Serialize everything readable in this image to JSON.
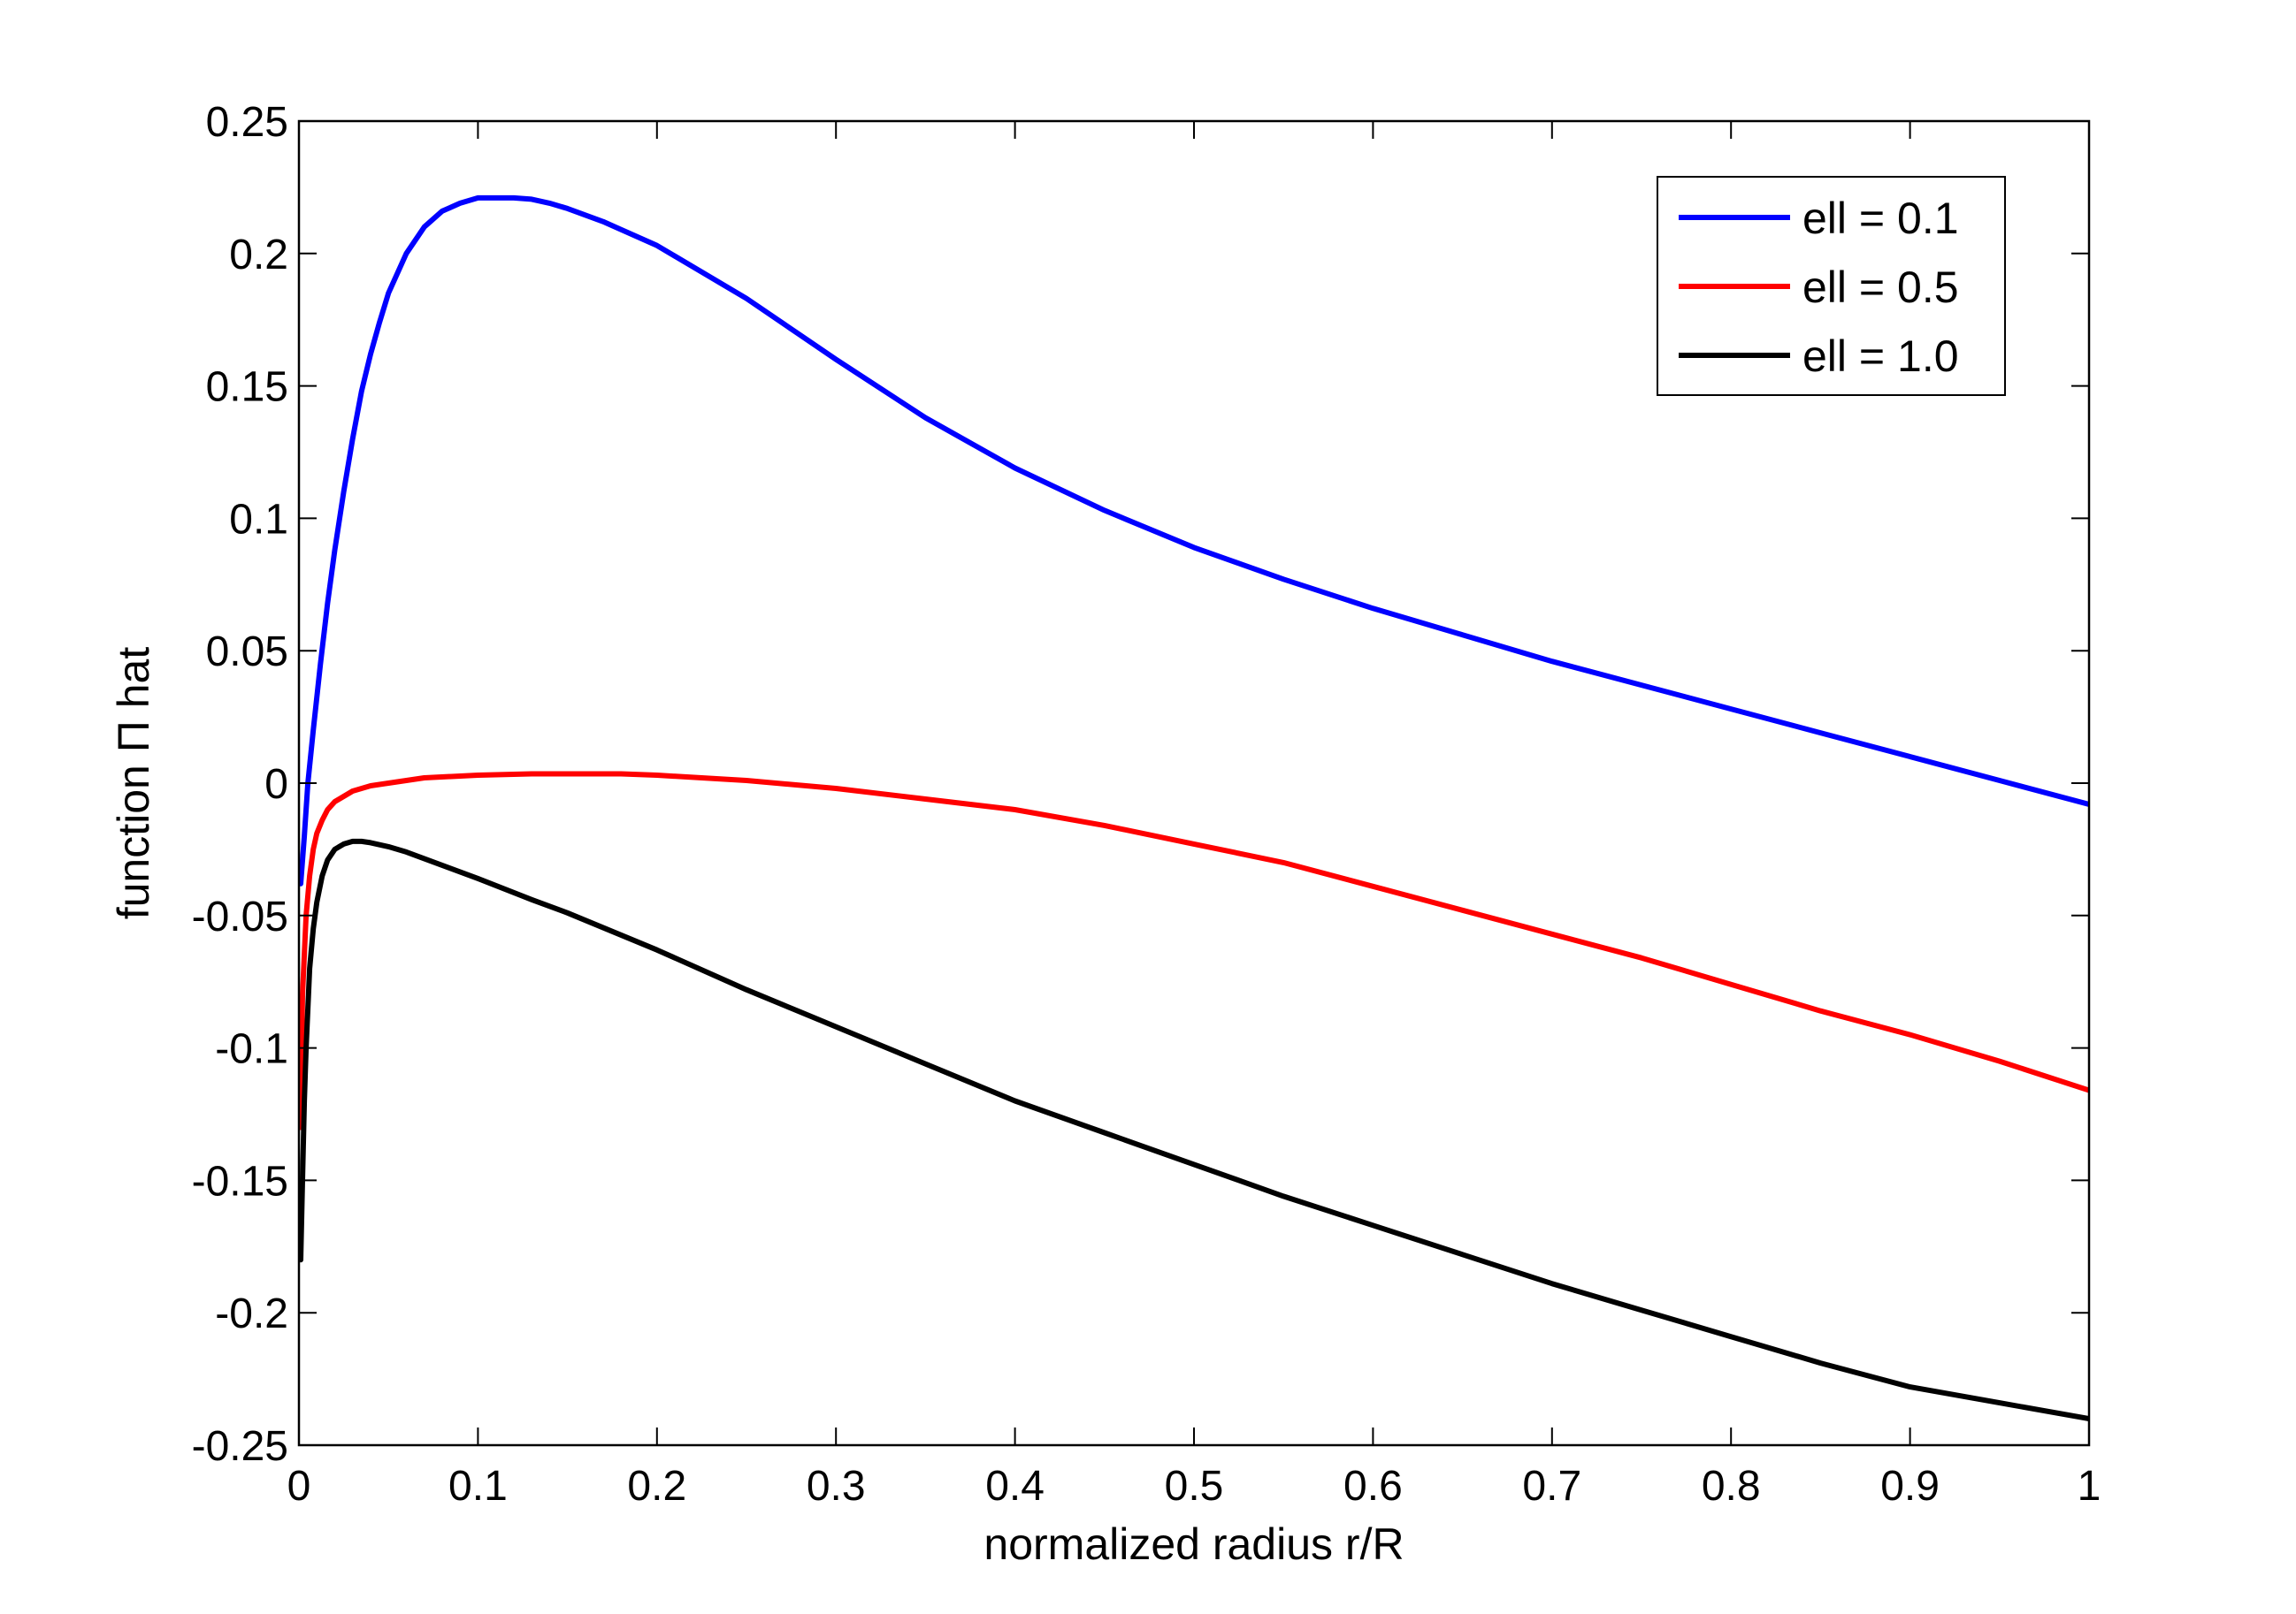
{
  "chart_data": {
    "type": "line",
    "title": "",
    "xlabel": "normalized radius r/R",
    "ylabel": "function Π hat",
    "xlim": [
      0,
      1
    ],
    "ylim": [
      -0.25,
      0.25
    ],
    "xticks": [
      0,
      0.1,
      0.2,
      0.3,
      0.4,
      0.5,
      0.6,
      0.7,
      0.8,
      0.9,
      1
    ],
    "xtick_labels": [
      "0",
      "0.1",
      "0.2",
      "0.3",
      "0.4",
      "0.5",
      "0.6",
      "0.7",
      "0.8",
      "0.9",
      "1"
    ],
    "yticks": [
      -0.25,
      -0.2,
      -0.15,
      -0.1,
      -0.05,
      0,
      0.05,
      0.1,
      0.15,
      0.2,
      0.25
    ],
    "ytick_labels": [
      "-0.25",
      "-0.2",
      "-0.15",
      "-0.1",
      "-0.05",
      "0",
      "0.05",
      "0.1",
      "0.15",
      "0.2",
      "0.25"
    ],
    "grid": false,
    "legend_position": "top-right",
    "series": [
      {
        "name": "ell = 0.1",
        "color": "#0000ff",
        "x": [
          0.001,
          0.003,
          0.005,
          0.008,
          0.012,
          0.016,
          0.02,
          0.025,
          0.03,
          0.035,
          0.04,
          0.045,
          0.05,
          0.06,
          0.07,
          0.08,
          0.09,
          0.1,
          0.11,
          0.12,
          0.13,
          0.14,
          0.15,
          0.17,
          0.2,
          0.25,
          0.3,
          0.35,
          0.4,
          0.45,
          0.5,
          0.55,
          0.6,
          0.65,
          0.7,
          0.75,
          0.8,
          0.85,
          0.9,
          0.95,
          1.0
        ],
        "y": [
          -0.038,
          -0.02,
          0.0,
          0.02,
          0.045,
          0.068,
          0.088,
          0.11,
          0.13,
          0.148,
          0.162,
          0.174,
          0.185,
          0.2,
          0.21,
          0.216,
          0.219,
          0.221,
          0.221,
          0.221,
          0.2205,
          0.219,
          0.217,
          0.212,
          0.203,
          0.183,
          0.16,
          0.138,
          0.119,
          0.103,
          0.089,
          0.077,
          0.066,
          0.056,
          0.046,
          0.037,
          0.028,
          0.019,
          0.01,
          0.001,
          -0.008
        ]
      },
      {
        "name": "ell = 0.5",
        "color": "#ff0000",
        "x": [
          0.001,
          0.002,
          0.004,
          0.006,
          0.008,
          0.01,
          0.013,
          0.016,
          0.02,
          0.025,
          0.03,
          0.04,
          0.05,
          0.07,
          0.1,
          0.13,
          0.15,
          0.18,
          0.2,
          0.25,
          0.3,
          0.35,
          0.4,
          0.45,
          0.5,
          0.55,
          0.6,
          0.65,
          0.7,
          0.75,
          0.8,
          0.85,
          0.9,
          0.95,
          1.0
        ],
        "y": [
          -0.13,
          -0.08,
          -0.05,
          -0.035,
          -0.025,
          -0.019,
          -0.014,
          -0.01,
          -0.007,
          -0.005,
          -0.003,
          -0.001,
          0.0,
          0.002,
          0.003,
          0.0035,
          0.0035,
          0.0035,
          0.003,
          0.001,
          -0.002,
          -0.006,
          -0.01,
          -0.016,
          -0.023,
          -0.03,
          -0.039,
          -0.048,
          -0.057,
          -0.066,
          -0.076,
          -0.086,
          -0.095,
          -0.105,
          -0.116
        ]
      },
      {
        "name": "ell = 1.0",
        "color": "#000000",
        "x": [
          0.001,
          0.002,
          0.003,
          0.004,
          0.005,
          0.006,
          0.008,
          0.01,
          0.013,
          0.016,
          0.02,
          0.025,
          0.03,
          0.035,
          0.04,
          0.05,
          0.06,
          0.08,
          0.1,
          0.13,
          0.15,
          0.2,
          0.25,
          0.3,
          0.35,
          0.4,
          0.45,
          0.5,
          0.55,
          0.6,
          0.65,
          0.7,
          0.75,
          0.8,
          0.85,
          0.9,
          0.95,
          1.0
        ],
        "y": [
          -0.18,
          -0.15,
          -0.12,
          -0.1,
          -0.085,
          -0.07,
          -0.055,
          -0.045,
          -0.035,
          -0.029,
          -0.025,
          -0.023,
          -0.022,
          -0.022,
          -0.0225,
          -0.024,
          -0.026,
          -0.031,
          -0.036,
          -0.044,
          -0.049,
          -0.063,
          -0.078,
          -0.092,
          -0.106,
          -0.12,
          -0.132,
          -0.144,
          -0.156,
          -0.167,
          -0.178,
          -0.189,
          -0.199,
          -0.209,
          -0.219,
          -0.228,
          -0.234,
          -0.24
        ]
      }
    ]
  }
}
